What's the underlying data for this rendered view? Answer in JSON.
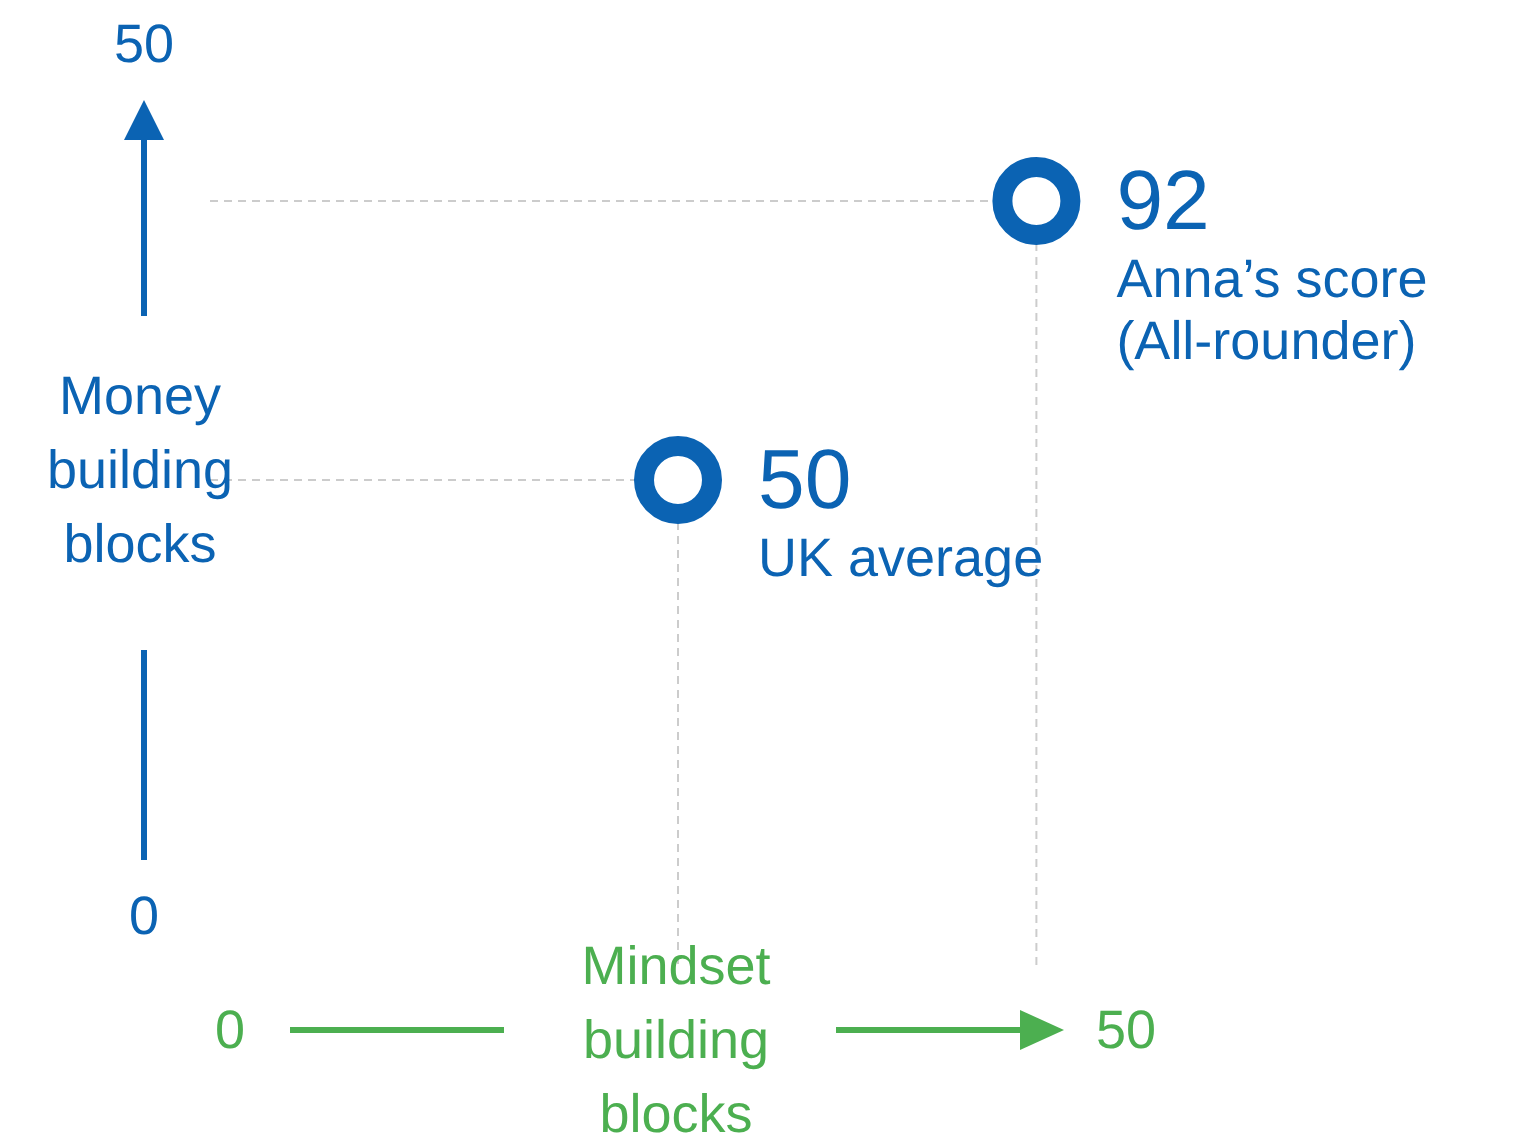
{
  "chart_data": {
    "type": "scatter",
    "xlabel": "Mindset building blocks",
    "ylabel": "Money building blocks",
    "xlim": [
      0,
      50
    ],
    "ylim": [
      0,
      50
    ],
    "xticks": [
      0,
      50
    ],
    "yticks": [
      0,
      50
    ],
    "marker": "circle",
    "ref_lines": [
      {
        "axis": "x",
        "value": 45,
        "color": "#cccccc",
        "line_style": "dashed"
      },
      {
        "axis": "y",
        "value": 41,
        "color": "#cccccc",
        "line_style": "dashed"
      },
      {
        "axis": "x",
        "value": 25,
        "color": "#cccccc",
        "line_style": "dashed"
      },
      {
        "axis": "y",
        "value": 25,
        "color": "#cccccc",
        "line_style": "dashed"
      }
    ],
    "series": [
      {
        "color": "#0b63b3",
        "x": [
          25,
          45
        ],
        "values": [
          25,
          41
        ]
      }
    ],
    "annotations": [
      {
        "text": "92\nAnna’s score\n(All-rounder)",
        "x": 45,
        "y": 41
      },
      {
        "text": "50\nUK average",
        "x": 25,
        "y": 25
      }
    ]
  }
}
